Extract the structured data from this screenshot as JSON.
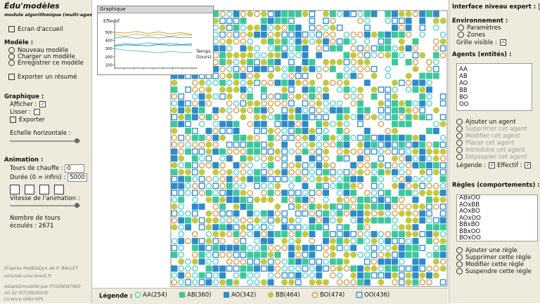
{
  "app": {
    "title": "Édu'modèles",
    "subtitle": "module algorithmique (multi-agents)",
    "home": "Ecran d'accueil"
  },
  "model": {
    "heading": "Modèle :",
    "items": [
      "Nouveau modèle",
      "Charger un modèle",
      "Enregistrer ce modèle"
    ],
    "export": "Exporter un résumé"
  },
  "graph_panel": {
    "heading": "Graphique :",
    "show": {
      "label": "Afficher :",
      "checked": true
    },
    "smooth": {
      "label": "Lisser :",
      "checked": false
    },
    "export": "Exporter",
    "scale": "Echelle horizontale :"
  },
  "animation": {
    "heading": "Animation :",
    "warmup": {
      "label": "Tours de chauffe :",
      "value": 0
    },
    "duration": {
      "label": "Durée (0 = infini) :",
      "value": 5000
    },
    "speed": "Vitesse de l'animation :",
    "turns_label": "Nombre de tours écoulés :",
    "turns": 2671
  },
  "credits": [
    "D'après NetBioDyn de P. BALLET",
    "virtulab.univ-brest.fr",
    "Adapté/modifié par P.COSENTINO",
    "v0.32 (07/09/2019)",
    "Licence GNU-GPL"
  ],
  "chart_data": {
    "type": "line",
    "title": "Graphique",
    "y_label": "Effectif",
    "x_label": "Temps (tours)",
    "ylim": [
      60,
      560
    ],
    "yticks": [
      100,
      200,
      300,
      400,
      500
    ],
    "series": [
      {
        "name": "AA",
        "color": "#4fd0d0",
        "values": [
          300,
          280,
          270,
          260,
          250,
          265,
          255,
          254
        ]
      },
      {
        "name": "AB",
        "color": "#3cc89c",
        "values": [
          340,
          360,
          350,
          370,
          355,
          365,
          350,
          360
        ]
      },
      {
        "name": "AO",
        "color": "#2d8cc8",
        "values": [
          330,
          345,
          340,
          335,
          350,
          340,
          345,
          342
        ]
      },
      {
        "name": "BB",
        "color": "#c4c83c",
        "values": [
          470,
          455,
          480,
          460,
          475,
          450,
          470,
          464
        ]
      },
      {
        "name": "BO",
        "color": "#d89a48",
        "values": [
          500,
          490,
          510,
          485,
          505,
          480,
          495,
          474
        ]
      },
      {
        "name": "OO",
        "color": "#7aa0d8",
        "values": [
          430,
          445,
          425,
          440,
          430,
          445,
          435,
          436
        ]
      }
    ]
  },
  "right": {
    "expert": {
      "label": "Interface niveau expert :",
      "checked": true
    },
    "env": {
      "heading": "Environnement :",
      "items": [
        "Paramètres",
        "Zones"
      ],
      "grid": {
        "label": "Grille visible :",
        "checked": true
      }
    },
    "agents": {
      "heading": "Agents (entités) :",
      "list": [
        "AA",
        "AB",
        "AO",
        "BB",
        "BO",
        "OO"
      ],
      "actions": [
        {
          "label": "Ajouter un agent",
          "enabled": true
        },
        {
          "label": "Supprimer cet agent",
          "enabled": false
        },
        {
          "label": "Modifier cet agent",
          "enabled": false
        },
        {
          "label": "Placer cet agent",
          "enabled": false
        },
        {
          "label": "Introduire cet agent",
          "enabled": false
        },
        {
          "label": "Dépeupler cet agent",
          "enabled": false
        }
      ],
      "legend": {
        "label": "Légende :",
        "checked": true
      },
      "count": {
        "label": "Effectif :",
        "checked": true
      }
    },
    "rules": {
      "heading": "Règles (comportements) :",
      "list": [
        "ABxOO",
        "AOxBB",
        "AOxBO",
        "AOxOO",
        "BBxBO",
        "BBxOO",
        "BOxOO"
      ],
      "actions": [
        "Ajouter une règle",
        "Supprimer cette règle",
        "Modifier cette règle",
        "Suspendre cette règle"
      ]
    }
  },
  "legend": {
    "heading": "Légende :",
    "items": [
      {
        "label": "AA(254)",
        "color": "#4fd0d0",
        "shape": "circle-hollow"
      },
      {
        "label": "AB(360)",
        "color": "#3cc89c",
        "shape": "square"
      },
      {
        "label": "AO(342)",
        "color": "#2d8cc8",
        "shape": "square"
      },
      {
        "label": "BB(464)",
        "color": "#c4c83c",
        "shape": "circle"
      },
      {
        "label": "BO(474)",
        "color": "#d89a48",
        "shape": "circle-hollow"
      },
      {
        "label": "OO(436)",
        "color": "#2d8cc8",
        "shape": "square-hollow"
      }
    ]
  }
}
